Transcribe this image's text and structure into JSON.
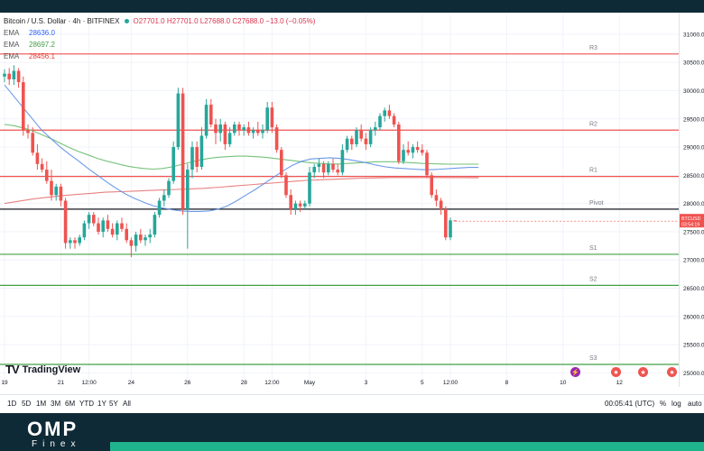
{
  "legend": {
    "symbol": "Bitcoin / U.S. Dollar · 4h · BITFINEX",
    "ohlc": "O27701.0  H27701.0  L27688.0  C27688.0  −13.0 (−0.05%)",
    "emas": [
      {
        "name": "EMA",
        "value": "28636.0",
        "color": "#2962ff"
      },
      {
        "name": "EMA",
        "value": "28697.2",
        "color": "#43a047"
      },
      {
        "name": "EMA",
        "value": "28456.1",
        "color": "#e53935"
      }
    ]
  },
  "price_tag": {
    "symbol": "BTCUSD",
    "time": "03:54:19",
    "color": "#ef5350"
  },
  "levels": [
    {
      "name": "R3",
      "value": 30650,
      "color": "#ef5350"
    },
    {
      "name": "R2",
      "value": 29300,
      "color": "#ef5350"
    },
    {
      "name": "R1",
      "value": 28480,
      "color": "#ef5350"
    },
    {
      "name": "Pivot",
      "value": 27900,
      "color": "#131722"
    },
    {
      "name": "S1",
      "value": 27100,
      "color": "#43a047"
    },
    {
      "name": "S2",
      "value": 26550,
      "color": "#43a047"
    },
    {
      "name": "S3",
      "value": 25150,
      "color": "#43a047"
    }
  ],
  "chart_data": {
    "type": "candlestick",
    "ylim": [
      24750,
      31350
    ],
    "y_ticks": [
      25000,
      25500,
      26000,
      26500,
      27000,
      27500,
      28000,
      28500,
      29000,
      29500,
      30000,
      30500,
      31000
    ],
    "y_tick_labels": [
      "25000.0",
      "25500.0",
      "26000.0",
      "26500.0",
      "27000.0",
      "27500.0",
      "28000.0",
      "28500.0",
      "29000.0",
      "29500.0",
      "30000.0",
      "30500.0",
      "31000.0"
    ],
    "x_ticks": [
      {
        "label": "19",
        "bar": 0
      },
      {
        "label": "21",
        "bar": 12
      },
      {
        "label": "12:00",
        "bar": 18
      },
      {
        "label": "24",
        "bar": 27
      },
      {
        "label": "26",
        "bar": 39
      },
      {
        "label": "28",
        "bar": 51
      },
      {
        "label": "12:00",
        "bar": 57
      },
      {
        "label": "May",
        "bar": 65
      },
      {
        "label": "3",
        "bar": 77
      },
      {
        "label": "5",
        "bar": 89
      },
      {
        "label": "12:00",
        "bar": 95
      },
      {
        "label": "8",
        "bar": 107
      },
      {
        "label": "10",
        "bar": 119
      },
      {
        "label": "12",
        "bar": 131
      }
    ],
    "candles": [
      [
        30250,
        30380,
        30150,
        30300
      ],
      [
        30300,
        30400,
        30100,
        30200
      ],
      [
        30200,
        30450,
        30100,
        30350
      ],
      [
        30350,
        30400,
        30050,
        30150
      ],
      [
        30150,
        30250,
        29200,
        29300
      ],
      [
        29300,
        29400,
        29150,
        29250
      ],
      [
        29250,
        29350,
        28850,
        28900
      ],
      [
        28900,
        29050,
        28600,
        28700
      ],
      [
        28700,
        28800,
        28550,
        28600
      ],
      [
        28600,
        28750,
        28350,
        28400
      ],
      [
        28400,
        28600,
        28050,
        28150
      ],
      [
        28150,
        28350,
        28050,
        28300
      ],
      [
        28300,
        28350,
        27950,
        28050
      ],
      [
        28050,
        28100,
        27200,
        27300
      ],
      [
        27300,
        27400,
        27200,
        27350
      ],
      [
        27350,
        27400,
        27200,
        27300
      ],
      [
        27300,
        27450,
        27250,
        27400
      ],
      [
        27400,
        27700,
        27350,
        27650
      ],
      [
        27650,
        27850,
        27550,
        27800
      ],
      [
        27800,
        27850,
        27600,
        27650
      ],
      [
        27650,
        27750,
        27450,
        27500
      ],
      [
        27500,
        27750,
        27400,
        27700
      ],
      [
        27700,
        27800,
        27500,
        27550
      ],
      [
        27550,
        27650,
        27400,
        27450
      ],
      [
        27450,
        27700,
        27350,
        27650
      ],
      [
        27650,
        27750,
        27500,
        27550
      ],
      [
        27550,
        27650,
        27300,
        27350
      ],
      [
        27350,
        27400,
        27050,
        27250
      ],
      [
        27250,
        27500,
        27150,
        27450
      ],
      [
        27450,
        27550,
        27300,
        27350
      ],
      [
        27350,
        27450,
        27250,
        27400
      ],
      [
        27400,
        27550,
        27300,
        27450
      ],
      [
        27450,
        27850,
        27400,
        27800
      ],
      [
        27800,
        28100,
        27750,
        28050
      ],
      [
        28050,
        28250,
        27950,
        28150
      ],
      [
        28150,
        28450,
        28100,
        28400
      ],
      [
        28400,
        29100,
        28350,
        29000
      ],
      [
        29000,
        30050,
        28950,
        29950
      ],
      [
        29950,
        30050,
        27800,
        27900
      ],
      [
        27900,
        28700,
        27200,
        28600
      ],
      [
        28600,
        29100,
        28450,
        29000
      ],
      [
        29000,
        29100,
        28550,
        28650
      ],
      [
        28650,
        29350,
        28600,
        29200
      ],
      [
        29200,
        29850,
        29150,
        29750
      ],
      [
        29750,
        29850,
        29350,
        29400
      ],
      [
        29400,
        29500,
        29050,
        29250
      ],
      [
        29250,
        29500,
        29100,
        29400
      ],
      [
        29400,
        29450,
        28950,
        29050
      ],
      [
        29050,
        29350,
        29000,
        29250
      ],
      [
        29250,
        29450,
        29200,
        29400
      ],
      [
        29400,
        29450,
        29200,
        29300
      ],
      [
        29300,
        29400,
        29200,
        29350
      ],
      [
        29350,
        29450,
        29200,
        29250
      ],
      [
        29250,
        29350,
        29150,
        29300
      ],
      [
        29300,
        29450,
        29200,
        29250
      ],
      [
        29250,
        29400,
        29150,
        29300
      ],
      [
        29300,
        29800,
        29250,
        29700
      ],
      [
        29700,
        29800,
        29250,
        29350
      ],
      [
        29350,
        29400,
        28900,
        28950
      ],
      [
        28950,
        29000,
        28450,
        28500
      ],
      [
        28500,
        28550,
        28100,
        28150
      ],
      [
        28150,
        28250,
        27800,
        27900
      ],
      [
        27900,
        28050,
        27800,
        28000
      ],
      [
        28000,
        28050,
        27850,
        27950
      ],
      [
        27950,
        28050,
        27900,
        28000
      ],
      [
        28000,
        28650,
        27950,
        28550
      ],
      [
        28550,
        28700,
        28450,
        28650
      ],
      [
        28650,
        28800,
        28550,
        28700
      ],
      [
        28700,
        28750,
        28450,
        28550
      ],
      [
        28550,
        28750,
        28500,
        28700
      ],
      [
        28700,
        28800,
        28550,
        28600
      ],
      [
        28600,
        28700,
        28500,
        28550
      ],
      [
        28550,
        29050,
        28500,
        28950
      ],
      [
        28950,
        29200,
        28900,
        29150
      ],
      [
        29150,
        29200,
        28950,
        29050
      ],
      [
        29050,
        29350,
        29000,
        29300
      ],
      [
        29300,
        29400,
        29100,
        29150
      ],
      [
        29150,
        29250,
        28950,
        29050
      ],
      [
        29050,
        29350,
        29000,
        29300
      ],
      [
        29300,
        29450,
        29200,
        29350
      ],
      [
        29350,
        29600,
        29300,
        29550
      ],
      [
        29550,
        29700,
        29450,
        29650
      ],
      [
        29650,
        29750,
        29500,
        29550
      ],
      [
        29550,
        29600,
        29350,
        29400
      ],
      [
        29400,
        29450,
        28700,
        28750
      ],
      [
        28750,
        29050,
        28700,
        28950
      ],
      [
        28950,
        29100,
        28850,
        28900
      ],
      [
        28900,
        29050,
        28800,
        29000
      ],
      [
        29000,
        29100,
        28900,
        28950
      ],
      [
        28950,
        29050,
        28850,
        28900
      ],
      [
        28900,
        28950,
        28450,
        28500
      ],
      [
        28500,
        28550,
        28100,
        28150
      ],
      [
        28150,
        28250,
        27950,
        28050
      ],
      [
        28050,
        28100,
        27800,
        27900
      ],
      [
        27900,
        27950,
        27350,
        27400
      ],
      [
        27400,
        27750,
        27350,
        27701
      ],
      [
        27701,
        27701,
        27688,
        27688
      ]
    ],
    "ema_blue": [
      30100,
      29900,
      29700,
      29500,
      29300,
      29150,
      29000,
      28870,
      28750,
      28620,
      28500,
      28380,
      28270,
      28170,
      28090,
      28020,
      27960,
      27920,
      27890,
      27870,
      27860,
      27860,
      27870,
      27900,
      27960,
      28050,
      28150,
      28250,
      28360,
      28470,
      28580,
      28680,
      28750,
      28790,
      28800,
      28810,
      28800,
      28780,
      28750,
      28720,
      28680,
      28650,
      28630,
      28620,
      28610,
      28600,
      28600,
      28610,
      28620,
      28630,
      28640,
      28640
    ],
    "ema_green": [
      29400,
      29380,
      29340,
      29290,
      29220,
      29150,
      29070,
      28990,
      28920,
      28860,
      28800,
      28750,
      28710,
      28670,
      28640,
      28620,
      28610,
      28620,
      28650,
      28690,
      28730,
      28770,
      28800,
      28820,
      28830,
      28840,
      28840,
      28830,
      28820,
      28800,
      28780,
      28760,
      28740,
      28720,
      28710,
      28700,
      28700,
      28710,
      28720,
      28730,
      28740,
      28740,
      28740,
      28730,
      28720,
      28710,
      28705,
      28700,
      28698,
      28697,
      28697,
      28697
    ],
    "ema_red": [
      28000,
      28040,
      28080,
      28110,
      28140,
      28160,
      28180,
      28200,
      28210,
      28220,
      28230,
      28240,
      28250,
      28260,
      28270,
      28290,
      28310,
      28330,
      28350,
      28370,
      28390,
      28410,
      28420,
      28430,
      28440,
      28450,
      28455,
      28460,
      28460,
      28460,
      28460,
      28458,
      28457,
      28456
    ]
  },
  "toolbar": {
    "timeframes": [
      "1D",
      "5D",
      "1M",
      "3M",
      "6M",
      "YTD",
      "1Y",
      "5Y",
      "All"
    ],
    "clock": "00:05:41 (UTC)",
    "pct": "%",
    "log": "log",
    "auto": "auto"
  },
  "tradingview": {
    "brand": "TradingView"
  },
  "footer": {
    "logo": "OMP",
    "sub": "Finex"
  }
}
